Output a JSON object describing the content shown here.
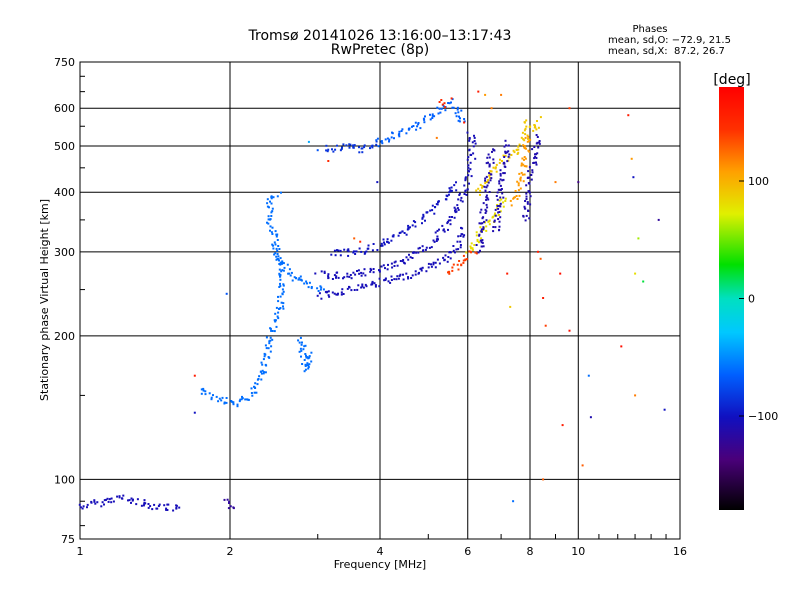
{
  "chart_data": {
    "type": "scatter",
    "title": "Tromsø 20141026 13:16:00–13:17:43",
    "subtitle": "RwPretec (8p)",
    "xlabel": "Frequency [MHz]",
    "ylabel": "Stationary phase Virtual Height [km]",
    "x_scale": "log2",
    "y_scale": "log",
    "xlim": [
      1,
      16
    ],
    "ylim": [
      75,
      750
    ],
    "x_ticks": [
      1,
      2,
      4,
      6,
      8,
      10,
      16
    ],
    "x_tick_labels": [
      "1",
      "2",
      "4",
      "6",
      "8",
      "10",
      "16"
    ],
    "y_ticks": [
      75,
      100,
      200,
      300,
      400,
      500,
      600,
      750
    ],
    "y_tick_labels": [
      "75",
      "100",
      "200",
      "300",
      "400",
      "500",
      "600",
      "750"
    ],
    "grid": true,
    "stats": {
      "heading": "Phases",
      "line_o": "mean, sd,O: −72.9, 21.5",
      "line_x": "mean, sd,X:  87.2, 26.7"
    },
    "colorbar": {
      "label": "[deg]",
      "range": [
        -180,
        180
      ],
      "ticks": [
        100,
        0,
        -100
      ],
      "tick_labels": [
        "100",
        "0",
        "−100"
      ]
    },
    "traces": [
      {
        "x": [
          1.0,
          1.05,
          1.1,
          1.2,
          1.3,
          1.45,
          1.6
        ],
        "y": [
          88,
          89,
          90,
          92,
          90,
          88,
          87
        ],
        "phase": -105
      },
      {
        "x": [
          1.95,
          2.0,
          2.05
        ],
        "y": [
          90,
          88,
          89
        ],
        "phase": -120
      },
      {
        "x": [
          1.75,
          1.85,
          1.95,
          2.05,
          2.2,
          2.3,
          2.35,
          2.4,
          2.5,
          2.55,
          2.5,
          2.45,
          2.4,
          2.4,
          2.45,
          2.5
        ],
        "y": [
          155,
          150,
          147,
          145,
          150,
          165,
          180,
          200,
          225,
          260,
          290,
          320,
          350,
          380,
          395,
          400
        ],
        "phase": -60
      },
      {
        "x": [
          2.45,
          2.55,
          2.7,
          2.9,
          3.1
        ],
        "y": [
          300,
          280,
          265,
          255,
          250
        ],
        "phase": -60
      },
      {
        "x": [
          2.75,
          2.8,
          2.85,
          2.9
        ],
        "y": [
          200,
          180,
          170,
          185
        ],
        "phase": -60
      },
      {
        "x": [
          3.0,
          3.2,
          3.5,
          3.8,
          4.2,
          4.6,
          5.0,
          5.4,
          5.7,
          5.9
        ],
        "y": [
          243,
          247,
          252,
          257,
          263,
          270,
          280,
          292,
          310,
          340
        ],
        "phase": -105
      },
      {
        "x": [
          3.0,
          3.3,
          3.7,
          4.1,
          4.5,
          5.0,
          5.4,
          5.8,
          6.0,
          6.1,
          6.1,
          6.05
        ],
        "y": [
          270,
          268,
          272,
          280,
          290,
          310,
          340,
          390,
          430,
          480,
          510,
          540
        ],
        "phase": -105
      },
      {
        "x": [
          3.2,
          3.6,
          4.0,
          4.4,
          4.8,
          5.2,
          5.5,
          5.7
        ],
        "y": [
          300,
          300,
          310,
          330,
          350,
          380,
          400,
          420
        ],
        "phase": -100
      },
      {
        "x": [
          3.1,
          3.3,
          3.5,
          3.7,
          3.9
        ],
        "y": [
          495,
          497,
          500,
          490,
          510
        ],
        "phase": -85
      },
      {
        "x": [
          3.9,
          4.3,
          4.8,
          5.2,
          5.5,
          5.7,
          5.85
        ],
        "y": [
          510,
          530,
          560,
          590,
          620,
          600,
          560
        ],
        "phase": -65
      },
      {
        "x": [
          5.3,
          5.4,
          5.5
        ],
        "y": [
          620,
          615,
          625
        ],
        "phase": 150
      },
      {
        "x": [
          5.4,
          5.6,
          5.8,
          6.0,
          6.2
        ],
        "y": [
          275,
          278,
          285,
          295,
          305
        ],
        "phase": 140
      },
      {
        "x": [
          6.0,
          6.2,
          6.5,
          6.8,
          7.0,
          7.2
        ],
        "y": [
          300,
          320,
          340,
          360,
          380,
          390
        ],
        "phase": 80
      },
      {
        "x": [
          6.3,
          6.5,
          6.8,
          7.1,
          7.4,
          7.6,
          7.8,
          7.9
        ],
        "y": [
          400,
          430,
          450,
          470,
          480,
          500,
          530,
          570
        ],
        "phase": 90
      },
      {
        "x": [
          6.3,
          6.4,
          6.5,
          6.6,
          6.7
        ],
        "y": [
          300,
          350,
          400,
          450,
          500
        ],
        "phase": -110
      },
      {
        "x": [
          6.8,
          6.9,
          7.0,
          7.1,
          7.2
        ],
        "y": [
          330,
          380,
          430,
          470,
          520
        ],
        "phase": -110
      },
      {
        "x": [
          7.8,
          7.9,
          8.0,
          8.1,
          8.2,
          8.3
        ],
        "y": [
          350,
          400,
          440,
          470,
          500,
          530
        ],
        "phase": -110
      },
      {
        "x": [
          7.4,
          7.6,
          7.8,
          7.9
        ],
        "y": [
          380,
          420,
          480,
          530
        ],
        "phase": 110
      },
      {
        "x": [
          8.1,
          8.2,
          8.3
        ],
        "y": [
          540,
          560,
          575
        ],
        "phase": 90
      }
    ],
    "points": [
      {
        "x": 1.7,
        "y": 165,
        "phase": 160
      },
      {
        "x": 1.7,
        "y": 138,
        "phase": -100
      },
      {
        "x": 1.97,
        "y": 245,
        "phase": -70
      },
      {
        "x": 2.88,
        "y": 510,
        "phase": -40
      },
      {
        "x": 3.0,
        "y": 490,
        "phase": -70
      },
      {
        "x": 3.15,
        "y": 465,
        "phase": 150
      },
      {
        "x": 3.55,
        "y": 320,
        "phase": 130
      },
      {
        "x": 3.65,
        "y": 315,
        "phase": 150
      },
      {
        "x": 3.95,
        "y": 420,
        "phase": -100
      },
      {
        "x": 5.2,
        "y": 520,
        "phase": 120
      },
      {
        "x": 5.9,
        "y": 560,
        "phase": 160
      },
      {
        "x": 6.3,
        "y": 650,
        "phase": 160
      },
      {
        "x": 6.5,
        "y": 640,
        "phase": 110
      },
      {
        "x": 6.7,
        "y": 600,
        "phase": 120
      },
      {
        "x": 7.0,
        "y": 640,
        "phase": 120
      },
      {
        "x": 7.2,
        "y": 270,
        "phase": 160
      },
      {
        "x": 7.3,
        "y": 230,
        "phase": 90
      },
      {
        "x": 7.4,
        "y": 90,
        "phase": -60
      },
      {
        "x": 8.3,
        "y": 300,
        "phase": 160
      },
      {
        "x": 8.4,
        "y": 290,
        "phase": 130
      },
      {
        "x": 8.5,
        "y": 240,
        "phase": 160
      },
      {
        "x": 8.6,
        "y": 210,
        "phase": 140
      },
      {
        "x": 8.5,
        "y": 100,
        "phase": 130
      },
      {
        "x": 9.0,
        "y": 420,
        "phase": 120
      },
      {
        "x": 9.2,
        "y": 270,
        "phase": 170
      },
      {
        "x": 9.3,
        "y": 130,
        "phase": 160
      },
      {
        "x": 9.6,
        "y": 600,
        "phase": 140
      },
      {
        "x": 9.6,
        "y": 205,
        "phase": 170
      },
      {
        "x": 10.0,
        "y": 420,
        "phase": -130
      },
      {
        "x": 10.2,
        "y": 107,
        "phase": 130
      },
      {
        "x": 10.5,
        "y": 165,
        "phase": -60
      },
      {
        "x": 10.6,
        "y": 135,
        "phase": -110
      },
      {
        "x": 12.2,
        "y": 190,
        "phase": 170
      },
      {
        "x": 12.6,
        "y": 580,
        "phase": 160
      },
      {
        "x": 12.8,
        "y": 470,
        "phase": 110
      },
      {
        "x": 12.9,
        "y": 430,
        "phase": -100
      },
      {
        "x": 13.2,
        "y": 320,
        "phase": 60
      },
      {
        "x": 13.0,
        "y": 270,
        "phase": 80
      },
      {
        "x": 13.0,
        "y": 150,
        "phase": 120
      },
      {
        "x": 13.5,
        "y": 260,
        "phase": 20
      },
      {
        "x": 14.5,
        "y": 350,
        "phase": -120
      },
      {
        "x": 14.9,
        "y": 140,
        "phase": -100
      }
    ]
  }
}
